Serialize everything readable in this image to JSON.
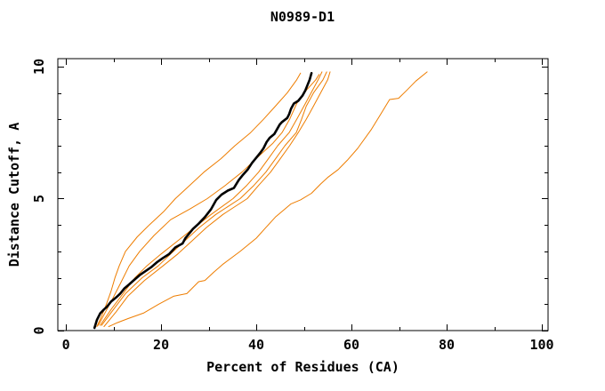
{
  "title": "N0989-D1",
  "colors": {
    "background": "#ffffff",
    "axis": "#000000",
    "orange_line": "#ee7d00",
    "highlight_line": "#000000"
  },
  "chart_data": {
    "type": "line",
    "title": "N0989-D1",
    "xlabel": "Percent of Residues (CA)",
    "ylabel": "Distance Cutoff, A",
    "xlim": [
      -1.7,
      101.3
    ],
    "ylim": [
      0,
      10.3
    ],
    "x_ticks_major": [
      0,
      20,
      40,
      60,
      80,
      100
    ],
    "x_ticks_minor": [
      10,
      30,
      50,
      70,
      90
    ],
    "x_tick_labels": [
      "0",
      "20",
      "40",
      "60",
      "80",
      "100"
    ],
    "y_ticks_major": [
      0,
      5,
      10
    ],
    "y_ticks_minor": [
      1,
      2,
      3,
      4,
      6,
      7,
      8,
      9
    ],
    "y_tick_labels": [
      "0",
      "5",
      "10"
    ],
    "grid": false,
    "legend": "none",
    "series": [
      {
        "id": "orange-1",
        "color": "#ee7d00",
        "width": 1,
        "points": [
          [
            6.5,
            0.15
          ],
          [
            7.5,
            0.55
          ],
          [
            8.5,
            1.0
          ],
          [
            9.5,
            1.5
          ],
          [
            10.3,
            2.0
          ],
          [
            11.2,
            2.45
          ],
          [
            12.5,
            3.0
          ],
          [
            15,
            3.55
          ],
          [
            17.5,
            4.0
          ],
          [
            20.5,
            4.5
          ],
          [
            23,
            5.0
          ],
          [
            26,
            5.5
          ],
          [
            29,
            6.0
          ],
          [
            32.5,
            6.5
          ],
          [
            35.5,
            7.0
          ],
          [
            38.8,
            7.5
          ],
          [
            41.5,
            8.0
          ],
          [
            44,
            8.5
          ],
          [
            46.5,
            9.0
          ],
          [
            48.5,
            9.5
          ],
          [
            49.3,
            9.75
          ]
        ]
      },
      {
        "id": "orange-2",
        "color": "#ee7d00",
        "width": 1,
        "points": [
          [
            6.8,
            0.2
          ],
          [
            8.3,
            0.7
          ],
          [
            9.8,
            1.2
          ],
          [
            11.5,
            1.8
          ],
          [
            13.3,
            2.45
          ],
          [
            15.5,
            3.0
          ],
          [
            18.5,
            3.6
          ],
          [
            22,
            4.2
          ],
          [
            26,
            4.6
          ],
          [
            29.7,
            5.0
          ],
          [
            33.5,
            5.5
          ],
          [
            37,
            6.0
          ],
          [
            40.5,
            6.6
          ],
          [
            43.5,
            7.1
          ],
          [
            45.4,
            7.5
          ],
          [
            47,
            8.0
          ],
          [
            48.5,
            8.6
          ],
          [
            50.5,
            9.1
          ],
          [
            52.5,
            9.5
          ],
          [
            53.2,
            9.7
          ]
        ]
      },
      {
        "id": "orange-3",
        "color": "#ee7d00",
        "width": 1,
        "points": [
          [
            7.2,
            0.2
          ],
          [
            9.5,
            0.8
          ],
          [
            12,
            1.4
          ],
          [
            14.5,
            2.0
          ],
          [
            17,
            2.45
          ],
          [
            20,
            2.9
          ],
          [
            23.5,
            3.4
          ],
          [
            27,
            3.9
          ],
          [
            30.5,
            4.4
          ],
          [
            35.1,
            5.0
          ],
          [
            38,
            5.5
          ],
          [
            40.5,
            6.0
          ],
          [
            42.5,
            6.5
          ],
          [
            44.5,
            7.0
          ],
          [
            46.9,
            7.5
          ],
          [
            48.5,
            8.0
          ],
          [
            50,
            8.5
          ],
          [
            51.5,
            9.0
          ],
          [
            53,
            9.5
          ],
          [
            53.8,
            9.8
          ]
        ]
      },
      {
        "id": "orange-4",
        "color": "#ee7d00",
        "width": 1,
        "points": [
          [
            7.5,
            0.2
          ],
          [
            10,
            0.8
          ],
          [
            12.5,
            1.4
          ],
          [
            16,
            2.0
          ],
          [
            19.4,
            2.45
          ],
          [
            22,
            2.9
          ],
          [
            25,
            3.4
          ],
          [
            28,
            3.9
          ],
          [
            31.5,
            4.4
          ],
          [
            36.6,
            5.0
          ],
          [
            39.5,
            5.5
          ],
          [
            42,
            6.0
          ],
          [
            44,
            6.5
          ],
          [
            46,
            7.0
          ],
          [
            48.4,
            7.5
          ],
          [
            49.5,
            8.0
          ],
          [
            50.5,
            8.5
          ],
          [
            52,
            9.0
          ],
          [
            54,
            9.5
          ],
          [
            54.8,
            9.8
          ]
        ]
      },
      {
        "id": "orange-5",
        "color": "#ee7d00",
        "width": 1,
        "points": [
          [
            8,
            0.15
          ],
          [
            10.5,
            0.7
          ],
          [
            13,
            1.3
          ],
          [
            16.5,
            1.9
          ],
          [
            20.4,
            2.45
          ],
          [
            23.5,
            2.9
          ],
          [
            26.5,
            3.4
          ],
          [
            29.5,
            3.9
          ],
          [
            33,
            4.4
          ],
          [
            38.1,
            5.0
          ],
          [
            40.5,
            5.5
          ],
          [
            43,
            6.0
          ],
          [
            45,
            6.5
          ],
          [
            47,
            7.0
          ],
          [
            48.8,
            7.5
          ],
          [
            50.5,
            8.0
          ],
          [
            52,
            8.5
          ],
          [
            53.5,
            9.0
          ],
          [
            55,
            9.5
          ],
          [
            55.5,
            9.8
          ]
        ]
      },
      {
        "id": "orange-6",
        "color": "#ee7d00",
        "width": 1,
        "points": [
          [
            9,
            0.15
          ],
          [
            10.8,
            0.3
          ],
          [
            13,
            0.45
          ],
          [
            16.4,
            0.67
          ],
          [
            19.5,
            1.0
          ],
          [
            22.6,
            1.3
          ],
          [
            25.4,
            1.4
          ],
          [
            27.9,
            1.85
          ],
          [
            29.2,
            1.9
          ],
          [
            31,
            2.2
          ],
          [
            32.9,
            2.5
          ],
          [
            36.6,
            3.0
          ],
          [
            40,
            3.5
          ],
          [
            42,
            3.9
          ],
          [
            44,
            4.3
          ],
          [
            46,
            4.6
          ],
          [
            47.3,
            4.8
          ],
          [
            49.3,
            4.95
          ],
          [
            51.6,
            5.2
          ],
          [
            53.5,
            5.55
          ],
          [
            55,
            5.8
          ],
          [
            57.2,
            6.1
          ],
          [
            59.1,
            6.45
          ],
          [
            61.3,
            6.9
          ],
          [
            64.1,
            7.6
          ],
          [
            66.5,
            8.3
          ],
          [
            68,
            8.75
          ],
          [
            69.9,
            8.8
          ],
          [
            71.6,
            9.1
          ],
          [
            73.5,
            9.45
          ],
          [
            75.9,
            9.8
          ]
        ]
      },
      {
        "id": "main-black",
        "color": "#000000",
        "width": 2.6,
        "points": [
          [
            6,
            0.1
          ],
          [
            6.5,
            0.4
          ],
          [
            7.2,
            0.65
          ],
          [
            8,
            0.8
          ],
          [
            8.6,
            0.9
          ],
          [
            9.5,
            1.1
          ],
          [
            10.5,
            1.25
          ],
          [
            11.4,
            1.4
          ],
          [
            12.3,
            1.6
          ],
          [
            13.3,
            1.75
          ],
          [
            14.2,
            1.9
          ],
          [
            15.5,
            2.1
          ],
          [
            16.7,
            2.25
          ],
          [
            17.9,
            2.4
          ],
          [
            19.2,
            2.6
          ],
          [
            20.4,
            2.75
          ],
          [
            21.7,
            2.9
          ],
          [
            23,
            3.15
          ],
          [
            24.5,
            3.3
          ],
          [
            25.1,
            3.5
          ],
          [
            26.7,
            3.85
          ],
          [
            27.9,
            4.05
          ],
          [
            29.2,
            4.3
          ],
          [
            30.5,
            4.6
          ],
          [
            31.6,
            4.95
          ],
          [
            32.7,
            5.15
          ],
          [
            34,
            5.3
          ],
          [
            35.3,
            5.4
          ],
          [
            36.3,
            5.7
          ],
          [
            37.2,
            5.9
          ],
          [
            38.2,
            6.1
          ],
          [
            39.1,
            6.35
          ],
          [
            40,
            6.55
          ],
          [
            40.9,
            6.75
          ],
          [
            41.5,
            6.9
          ],
          [
            42.2,
            7.15
          ],
          [
            42.8,
            7.3
          ],
          [
            43.8,
            7.45
          ],
          [
            44.9,
            7.8
          ],
          [
            45.4,
            7.9
          ],
          [
            46.5,
            8.05
          ],
          [
            46.9,
            8.2
          ],
          [
            47.3,
            8.4
          ],
          [
            47.9,
            8.6
          ],
          [
            48.8,
            8.7
          ],
          [
            49.7,
            8.9
          ],
          [
            50.3,
            9.1
          ],
          [
            51.2,
            9.5
          ],
          [
            51.6,
            9.75
          ]
        ]
      }
    ]
  }
}
